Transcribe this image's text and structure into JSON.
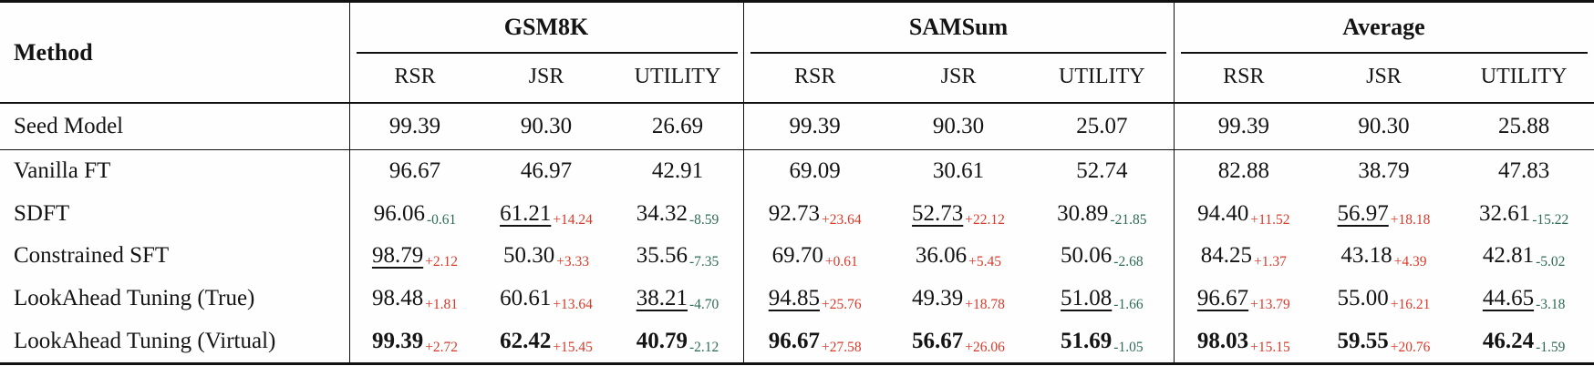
{
  "colors": {
    "positive_delta": "#d93a2a",
    "negative_delta": "#2e6b57",
    "rule": "#111111",
    "text": "#141414"
  },
  "table": {
    "header": {
      "method_label": "Method",
      "groups": [
        {
          "label": "GSM8K",
          "subcolumns": [
            "RSR",
            "JSR",
            "UTILITY"
          ]
        },
        {
          "label": "SAMSum",
          "subcolumns": [
            "RSR",
            "JSR",
            "UTILITY"
          ]
        },
        {
          "label": "Average",
          "subcolumns": [
            "RSR",
            "JSR",
            "UTILITY"
          ]
        }
      ]
    },
    "seed_rows": [
      {
        "method": "Seed Model",
        "bold": false,
        "cells": [
          {
            "value": "99.39"
          },
          {
            "value": "90.30"
          },
          {
            "value": "26.69"
          },
          {
            "value": "99.39"
          },
          {
            "value": "90.30"
          },
          {
            "value": "25.07"
          },
          {
            "value": "99.39"
          },
          {
            "value": "90.30"
          },
          {
            "value": "25.88"
          }
        ]
      }
    ],
    "rows": [
      {
        "method": "Vanilla FT",
        "bold": false,
        "cells": [
          {
            "value": "96.67"
          },
          {
            "value": "46.97"
          },
          {
            "value": "42.91"
          },
          {
            "value": "69.09"
          },
          {
            "value": "30.61"
          },
          {
            "value": "52.74"
          },
          {
            "value": "82.88"
          },
          {
            "value": "38.79"
          },
          {
            "value": "47.83"
          }
        ]
      },
      {
        "method": "SDFT",
        "bold": false,
        "cells": [
          {
            "value": "96.06",
            "delta": "-0.61"
          },
          {
            "value": "61.21",
            "delta": "+14.24",
            "underline": true
          },
          {
            "value": "34.32",
            "delta": "-8.59"
          },
          {
            "value": "92.73",
            "delta": "+23.64"
          },
          {
            "value": "52.73",
            "delta": "+22.12",
            "underline": true
          },
          {
            "value": "30.89",
            "delta": "-21.85"
          },
          {
            "value": "94.40",
            "delta": "+11.52"
          },
          {
            "value": "56.97",
            "delta": "+18.18",
            "underline": true
          },
          {
            "value": "32.61",
            "delta": "-15.22"
          }
        ]
      },
      {
        "method": "Constrained SFT",
        "bold": false,
        "cells": [
          {
            "value": "98.79",
            "delta": "+2.12",
            "underline": true
          },
          {
            "value": "50.30",
            "delta": "+3.33"
          },
          {
            "value": "35.56",
            "delta": "-7.35"
          },
          {
            "value": "69.70",
            "delta": "+0.61"
          },
          {
            "value": "36.06",
            "delta": "+5.45"
          },
          {
            "value": "50.06",
            "delta": "-2.68"
          },
          {
            "value": "84.25",
            "delta": "+1.37"
          },
          {
            "value": "43.18",
            "delta": "+4.39"
          },
          {
            "value": "42.81",
            "delta": "-5.02"
          }
        ]
      },
      {
        "method": "LookAhead Tuning (True)",
        "bold": false,
        "cells": [
          {
            "value": "98.48",
            "delta": "+1.81"
          },
          {
            "value": "60.61",
            "delta": "+13.64"
          },
          {
            "value": "38.21",
            "delta": "-4.70",
            "underline": true
          },
          {
            "value": "94.85",
            "delta": "+25.76",
            "underline": true
          },
          {
            "value": "49.39",
            "delta": "+18.78"
          },
          {
            "value": "51.08",
            "delta": "-1.66",
            "underline": true
          },
          {
            "value": "96.67",
            "delta": "+13.79",
            "underline": true
          },
          {
            "value": "55.00",
            "delta": "+16.21"
          },
          {
            "value": "44.65",
            "delta": "-3.18",
            "underline": true
          }
        ]
      },
      {
        "method": "LookAhead Tuning (Virtual)",
        "bold": true,
        "cells": [
          {
            "value": "99.39",
            "delta": "+2.72"
          },
          {
            "value": "62.42",
            "delta": "+15.45"
          },
          {
            "value": "40.79",
            "delta": "-2.12"
          },
          {
            "value": "96.67",
            "delta": "+27.58"
          },
          {
            "value": "56.67",
            "delta": "+26.06"
          },
          {
            "value": "51.69",
            "delta": "-1.05"
          },
          {
            "value": "98.03",
            "delta": "+15.15"
          },
          {
            "value": "59.55",
            "delta": "+20.76"
          },
          {
            "value": "46.24",
            "delta": "-1.59"
          }
        ]
      }
    ]
  }
}
